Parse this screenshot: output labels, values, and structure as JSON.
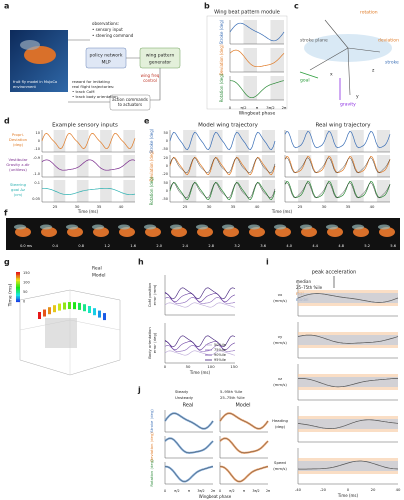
{
  "a": {
    "letter": "a",
    "fly": [
      "fruit fly model in MuJoCo",
      "environment"
    ],
    "obs": [
      "observations:",
      "• sensory input",
      "• steering command"
    ],
    "policy": [
      "policy network",
      "MLP"
    ],
    "generator": [
      "wing pattern",
      "generator"
    ],
    "freq": [
      "wing freq",
      "control"
    ],
    "reward": [
      "reward for imitating",
      "real flight trajectories:",
      "• track CoM",
      "• track body orientation"
    ],
    "action": [
      "action commands",
      "to actuators"
    ]
  },
  "b": {
    "letter": "b",
    "title": "Wing beat pattern module",
    "ylabels": [
      "Stroke (deg)",
      "Deviation (deg)",
      "Rotation (deg)"
    ],
    "xlabel": "Wingbeat phase",
    "xticks": [
      "0",
      "π/2",
      "π",
      "3π/2",
      "2π"
    ]
  },
  "c": {
    "letter": "c",
    "labels": [
      "rotation",
      "deviation",
      "stroke",
      "stroke plane",
      "goal",
      "gravity",
      "x",
      "y",
      "z"
    ]
  },
  "d": {
    "letter": "d",
    "title": "Example sensory inputs",
    "ylabels": [
      [
        "Propri.",
        "Deviation",
        "(deg)"
      ],
      [
        "Vestibular",
        "Gravity z-dir",
        "(unitless)"
      ],
      [
        "Steering",
        "goal Δz",
        "(cm)"
      ]
    ],
    "yticks": [
      [
        "10",
        "0",
        "-10"
      ],
      [
        "-0.9",
        "-1.0"
      ],
      [
        "0.1",
        "0.05"
      ]
    ],
    "xticks": [
      "25",
      "30",
      "35",
      "40"
    ],
    "xlabel": "Time (ms)"
  },
  "e": {
    "letter": "e",
    "titles": [
      "Model wing trajectory",
      "Real wing trajectory"
    ],
    "ylabels": [
      "Stroke (deg)",
      "Deviation (deg)",
      "Rotation (deg)"
    ],
    "yticks": [
      [
        "50",
        "0",
        "-50"
      ],
      [
        "20",
        "0",
        "-20"
      ],
      [
        "50",
        "0",
        "-50"
      ]
    ],
    "xticks": [
      "25",
      "30",
      "35",
      "40"
    ],
    "xlabel": "Time (ms)"
  },
  "f": {
    "letter": "f",
    "times": [
      "0.0 ms",
      "0.4",
      "0.8",
      "1.2",
      "1.6",
      "2.0",
      "2.4",
      "2.8",
      "3.2",
      "3.6",
      "4.0",
      "4.4",
      "4.8",
      "5.2",
      "5.6"
    ]
  },
  "g": {
    "letter": "g",
    "zlabel": "Time (ms)",
    "cbar": [
      "150",
      "100",
      "50",
      "0"
    ],
    "legend": [
      "Real",
      "Model"
    ]
  },
  "h": {
    "letter": "h",
    "ylabels": [
      [
        "CoM position",
        "error (mm)"
      ],
      [
        "Body orientation",
        "error (deg)"
      ]
    ],
    "legend": [
      "50%ile",
      "75%ile",
      "90%ile",
      "95%ile"
    ],
    "xticks": [
      "0",
      "50",
      "100",
      "150"
    ],
    "xlabel": "Time (ms)"
  },
  "i": {
    "letter": "i",
    "annotation": "peak acceleration",
    "legend": [
      "median",
      "25–75th %ile",
      "real",
      "model"
    ],
    "ylabels": [
      [
        "vx",
        "(mm/s)"
      ],
      [
        "vy",
        "(mm/s)"
      ],
      [
        "vz",
        "(mm/s)"
      ],
      [
        "Heading",
        "(deg)"
      ],
      [
        "Speed",
        "(mm/s)"
      ]
    ],
    "xticks": [
      "-40",
      "-20",
      "0",
      "20",
      "40"
    ],
    "xlabel": "Time (ms)"
  },
  "j": {
    "letter": "j",
    "legend": [
      "Steady",
      "Unsteady",
      "5–95th %ile",
      "25–75th %ile"
    ],
    "titles": [
      "Real",
      "Model"
    ],
    "ylabels": [
      "Stroke (deg)",
      "Deviation (deg)",
      "Rotation (deg)"
    ],
    "xticks": [
      "0",
      "π/2",
      "π",
      "3π/2",
      "2π"
    ],
    "xlabel": "Wingbeat phase"
  }
}
